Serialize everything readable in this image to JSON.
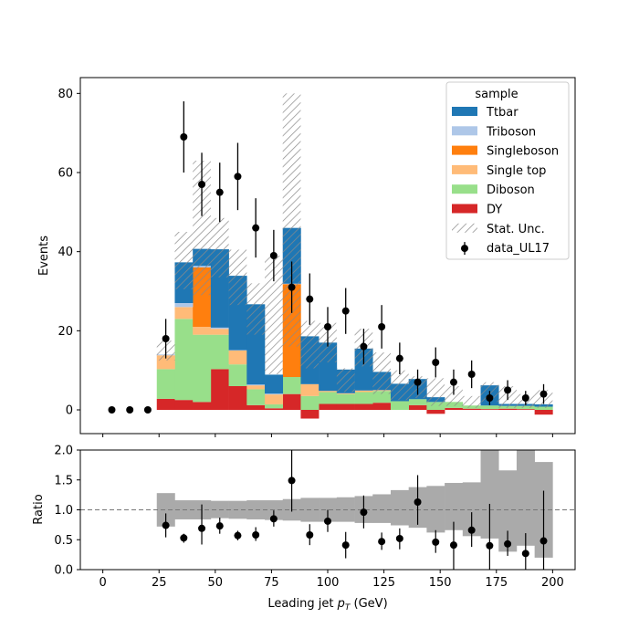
{
  "chart_data": [
    {
      "panel": "main",
      "type": "bar",
      "stacked": true,
      "xlabel": "Leading jet  p_T (GeV)",
      "ylabel": "Events",
      "xlim": [
        -10,
        210
      ],
      "ylim": [
        -6,
        84
      ],
      "xticks": [
        0,
        25,
        50,
        75,
        100,
        125,
        150,
        175,
        200
      ],
      "yticks": [
        0,
        20,
        40,
        60,
        80
      ],
      "bin_edges": [
        24,
        32,
        40,
        48,
        56,
        64,
        72,
        80,
        88,
        96,
        104,
        112,
        120,
        128,
        136,
        144,
        152,
        160,
        168,
        176,
        184,
        192,
        200
      ],
      "legend_title": "sample",
      "legend_position": "upper right",
      "series": [
        {
          "name": "DY",
          "color": "#d62728",
          "values": [
            2.8,
            2.5,
            2.0,
            10.3,
            6.0,
            1.2,
            0.4,
            4.0,
            -2.2,
            1.5,
            1.5,
            1.5,
            1.8,
            0.0,
            1.2,
            -1.0,
            0.5,
            0.3,
            0.2,
            0.3,
            0.2,
            -1.2
          ]
        },
        {
          "name": "Diboson",
          "color": "#98df8a",
          "values": [
            7.5,
            20.5,
            17.0,
            8.7,
            5.5,
            4.0,
            1.0,
            4.3,
            3.5,
            3.0,
            2.5,
            3.0,
            3.0,
            2.2,
            1.5,
            2.0,
            1.5,
            0.8,
            0.9,
            0.7,
            0.8,
            0.8
          ]
        },
        {
          "name": "Single top",
          "color": "#ffbb78",
          "values": [
            3.5,
            3.0,
            2.0,
            1.5,
            3.5,
            1.0,
            2.5,
            0.0,
            3.0,
            0.3,
            0.2,
            0.4,
            0.2,
            0.0,
            0.0,
            0.0,
            0.0,
            0.0,
            0.0,
            0.0,
            0.0,
            0.0
          ]
        },
        {
          "name": "Singleboson",
          "color": "#ff7f0e",
          "values": [
            0.0,
            0.0,
            15.0,
            0.0,
            0.0,
            0.0,
            0.0,
            23.5,
            0.0,
            0.0,
            0.0,
            0.0,
            0.0,
            0.0,
            0.0,
            0.0,
            0.0,
            0.0,
            0.0,
            0.0,
            0.0,
            0.0
          ]
        },
        {
          "name": "Triboson",
          "color": "#aec7e8",
          "values": [
            0.2,
            1.0,
            0.4,
            0.3,
            0.1,
            0.2,
            0.2,
            0.1,
            0.0,
            0.0,
            0.0,
            0.0,
            0.0,
            0.0,
            0.0,
            0.0,
            0.0,
            0.0,
            0.0,
            0.0,
            0.0,
            0.0
          ]
        },
        {
          "name": "Ttbar",
          "color": "#1f77b4",
          "values": [
            0.0,
            10.3,
            4.3,
            19.8,
            18.8,
            20.3,
            4.8,
            14.1,
            12.1,
            12.2,
            6.0,
            10.6,
            4.6,
            4.4,
            5.1,
            1.2,
            0.0,
            0.0,
            5.1,
            0.5,
            0.5,
            0.6
          ]
        }
      ],
      "stat_unc_low": [
        12.5,
        30.5,
        29.0,
        33.5,
        26.5,
        19.0,
        9.0,
        16.0,
        10.5,
        12.0,
        4.5,
        11.0,
        4.0,
        2.5,
        3.0,
        1.0,
        1.0,
        0.5,
        2.0,
        0.5,
        0.5,
        0.5
      ],
      "stat_unc_high": [
        17.5,
        45.0,
        63.0,
        48.5,
        40.5,
        32.0,
        39.0,
        80.0,
        22.5,
        22.0,
        10.5,
        20.5,
        14.5,
        10.0,
        8.5,
        8.0,
        6.0,
        3.5,
        7.0,
        6.0,
        4.0,
        5.0
      ],
      "stat_unc_label": "Stat. Unc.",
      "data": {
        "name": "data_UL17",
        "x": [
          4,
          12,
          20,
          28,
          36,
          44,
          52,
          60,
          68,
          76,
          84,
          92,
          100,
          108,
          116,
          124,
          132,
          140,
          148,
          156,
          164,
          172,
          180,
          188,
          196
        ],
        "y": [
          0,
          0,
          0,
          18,
          69,
          57,
          55,
          59,
          46,
          39,
          31,
          28,
          21,
          25,
          16,
          21,
          13,
          7,
          12,
          7,
          9,
          3,
          5,
          3,
          4
        ],
        "yerr": [
          0,
          0,
          0,
          5,
          9,
          8,
          7.5,
          8.5,
          7.5,
          6.5,
          6.5,
          6.5,
          5,
          5.8,
          4.5,
          5.5,
          4,
          3.2,
          3.8,
          3.2,
          3.5,
          1.8,
          2.5,
          1.8,
          2.5
        ]
      }
    },
    {
      "panel": "ratio",
      "type": "scatter",
      "xlabel": "Leading jet  p_T (GeV)",
      "ylabel": "Ratio",
      "xlim": [
        -10,
        210
      ],
      "ylim": [
        0,
        2
      ],
      "xticks": [
        0,
        25,
        50,
        75,
        100,
        125,
        150,
        175,
        200
      ],
      "yticks": [
        0.0,
        0.5,
        1.0,
        1.5,
        2.0
      ],
      "ytick_labels": [
        "0.0",
        "0.5",
        "1.0",
        "1.5",
        "2.0"
      ],
      "reference_line": 1.0,
      "band_low": [
        0.72,
        0.84,
        0.84,
        0.86,
        0.85,
        0.84,
        0.83,
        0.82,
        0.8,
        0.8,
        0.8,
        0.78,
        0.78,
        0.74,
        0.7,
        0.62,
        0.66,
        0.56,
        0.52,
        0.3,
        0.4,
        0.2
      ],
      "band_high": [
        1.28,
        1.16,
        1.16,
        1.15,
        1.15,
        1.16,
        1.16,
        1.18,
        1.2,
        1.2,
        1.21,
        1.23,
        1.26,
        1.33,
        1.38,
        1.4,
        1.45,
        1.46,
        2.0,
        1.66,
        2.0,
        1.8
      ],
      "points": {
        "x": [
          28,
          36,
          44,
          52,
          60,
          68,
          76,
          84,
          92,
          100,
          108,
          116,
          124,
          132,
          140,
          148,
          156,
          164,
          172,
          180,
          188,
          196
        ],
        "y": [
          0.74,
          0.53,
          0.69,
          0.73,
          0.57,
          0.58,
          0.85,
          1.49,
          0.58,
          0.81,
          0.41,
          0.96,
          0.47,
          0.52,
          1.13,
          0.46,
          0.41,
          0.66,
          0.4,
          0.43,
          0.27,
          0.48
        ],
        "err_low": [
          0.2,
          0.08,
          0.27,
          0.13,
          0.08,
          0.1,
          0.13,
          0.52,
          0.17,
          0.18,
          0.22,
          0.27,
          0.14,
          0.18,
          0.38,
          0.18,
          0.41,
          0.28,
          0.4,
          0.2,
          0.27,
          0.48
        ],
        "err_high": [
          0.2,
          0.07,
          0.4,
          0.14,
          0.08,
          0.13,
          0.14,
          0.52,
          0.18,
          0.19,
          0.22,
          0.28,
          0.15,
          0.17,
          0.45,
          0.2,
          0.39,
          0.3,
          0.7,
          0.22,
          0.34,
          0.84
        ]
      }
    }
  ]
}
